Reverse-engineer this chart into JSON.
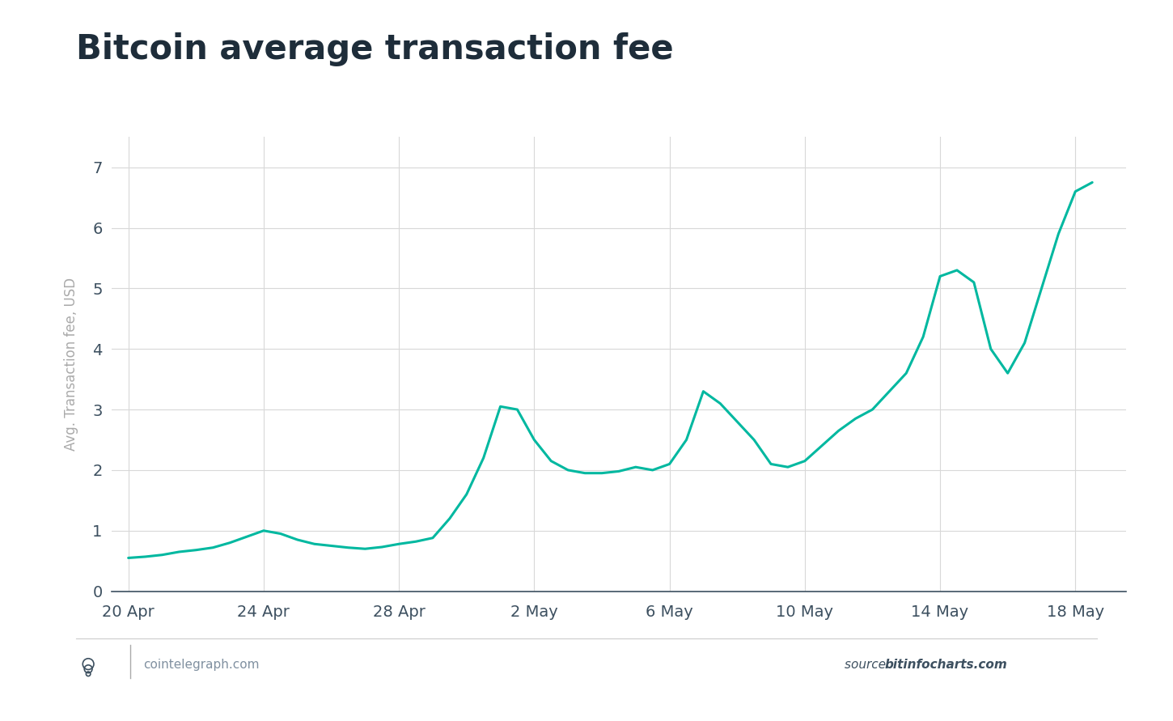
{
  "title": "Bitcoin average transaction fee",
  "ylabel": "Avg. Transaction fee, USD",
  "line_color": "#00b8a0",
  "line_width": 2.2,
  "background_color": "#ffffff",
  "grid_color": "#d8d8d8",
  "title_fontsize": 30,
  "ylabel_fontsize": 12,
  "tick_fontsize": 14,
  "tick_color": "#3d5060",
  "ylim": [
    0,
    7.5
  ],
  "yticks": [
    0,
    1,
    2,
    3,
    4,
    5,
    6,
    7
  ],
  "xtick_labels": [
    "20 Apr",
    "24 Apr",
    "28 Apr",
    "2 May",
    "6 May",
    "10 May",
    "14 May",
    "18 May"
  ],
  "xtick_positions": [
    0,
    4,
    8,
    12,
    16,
    20,
    24,
    28
  ],
  "source_text_color": "#3d5060",
  "watermark_color": "#8090a0",
  "title_color": "#1e2d3a",
  "x_values": [
    0,
    0.5,
    1,
    1.5,
    2,
    2.5,
    3,
    3.5,
    4,
    4.5,
    5,
    5.5,
    6,
    6.5,
    7,
    7.5,
    8,
    8.5,
    9,
    9.5,
    10,
    10.5,
    11,
    11.5,
    12,
    12.5,
    13,
    13.5,
    14,
    14.5,
    15,
    15.5,
    16,
    16.5,
    17,
    17.5,
    18,
    18.5,
    19,
    19.5,
    20,
    20.5,
    21,
    21.5,
    22,
    22.5,
    23,
    23.5,
    24,
    24.5,
    25,
    25.5,
    26,
    26.5,
    27,
    27.5,
    28,
    28.5
  ],
  "y_values": [
    0.55,
    0.57,
    0.6,
    0.65,
    0.68,
    0.72,
    0.8,
    0.9,
    1.0,
    0.95,
    0.85,
    0.78,
    0.75,
    0.72,
    0.7,
    0.73,
    0.78,
    0.82,
    0.88,
    1.2,
    1.6,
    2.2,
    3.05,
    3.0,
    2.5,
    2.15,
    2.0,
    1.95,
    1.95,
    1.98,
    2.05,
    2.0,
    2.1,
    2.5,
    3.3,
    3.1,
    2.8,
    2.5,
    2.1,
    2.05,
    2.15,
    2.4,
    2.65,
    2.85,
    3.0,
    3.3,
    3.6,
    4.2,
    5.2,
    5.3,
    5.1,
    4.0,
    3.6,
    4.1,
    5.0,
    5.9,
    6.6,
    6.75
  ]
}
